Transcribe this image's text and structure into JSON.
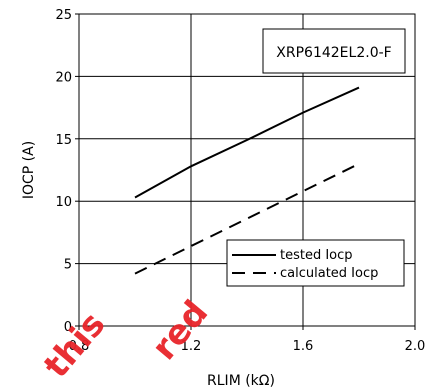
{
  "chart_data": {
    "type": "line",
    "xlabel": "RLIM (kΩ)",
    "ylabel": "IOCP (A)",
    "xlim": [
      0.8,
      2.0
    ],
    "ylim": [
      0,
      25
    ],
    "x_ticks": [
      "0.8",
      "1.2",
      "1.6",
      "2.0"
    ],
    "y_ticks": [
      "0",
      "5",
      "10",
      "15",
      "20",
      "25"
    ],
    "grid": true,
    "legend_position": "lower-right",
    "annotation": "XRP6142EL2.0-F",
    "series": [
      {
        "name": "tested Iocp",
        "style": "solid",
        "x": [
          1.0,
          1.2,
          1.4,
          1.6,
          1.8
        ],
        "y": [
          10.3,
          12.8,
          14.9,
          17.1,
          19.1
        ]
      },
      {
        "name": "calculated Iocp",
        "style": "dashed",
        "x": [
          1.0,
          1.2,
          1.4,
          1.6,
          1.8
        ],
        "y": [
          4.2,
          6.4,
          8.6,
          10.8,
          13.0
        ]
      }
    ],
    "colors": {
      "line": "#000000",
      "grid": "#000000",
      "watermark": "#e8242a"
    }
  },
  "watermark": [
    "this",
    "red"
  ]
}
